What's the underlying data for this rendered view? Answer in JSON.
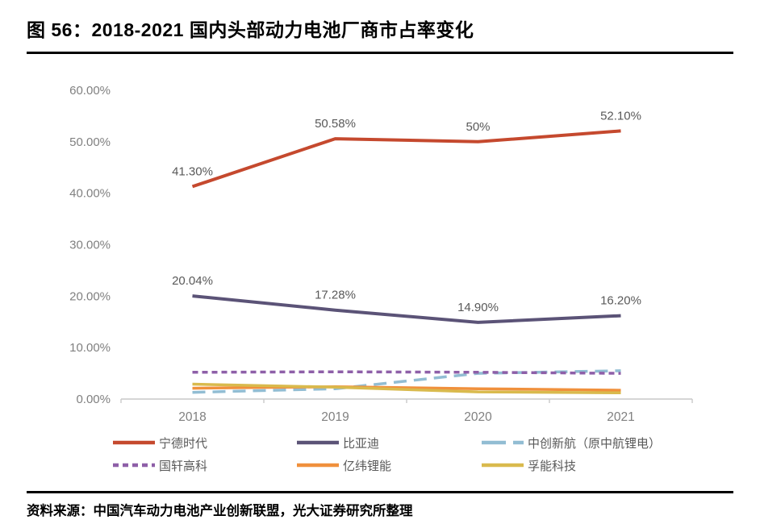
{
  "figure": {
    "title": "图 56：2018-2021 国内头部动力电池厂商市占率变化",
    "source": "资料来源：中国汽车动力电池产业创新联盟，光大证券研究所整理"
  },
  "chart_data": {
    "type": "line",
    "categories": [
      "2018",
      "2019",
      "2020",
      "2021"
    ],
    "series": [
      {
        "name": "宁德时代",
        "color": "#C5492E",
        "style": "solid",
        "values": [
          41.3,
          50.58,
          50.0,
          52.1
        ],
        "labels": [
          "41.30%",
          "50.58%",
          "50%",
          "52.10%"
        ]
      },
      {
        "name": "比亚迪",
        "color": "#5B5377",
        "style": "solid",
        "values": [
          20.04,
          17.28,
          14.9,
          16.2
        ],
        "labels": [
          "20.04%",
          "17.28%",
          "14.90%",
          "16.20%"
        ]
      },
      {
        "name": "中创新航（原中航锂电）",
        "color": "#92BDD3",
        "style": "dashed-long",
        "values": [
          1.3,
          2.0,
          5.0,
          5.5
        ]
      },
      {
        "name": "国轩高科",
        "color": "#8E5FA8",
        "style": "dashed-short",
        "values": [
          5.2,
          5.3,
          5.2,
          5.0
        ]
      },
      {
        "name": "亿纬锂能",
        "color": "#F0903C",
        "style": "solid",
        "values": [
          2.1,
          2.4,
          2.0,
          1.7
        ]
      },
      {
        "name": "孚能科技",
        "color": "#D9BA4D",
        "style": "solid",
        "values": [
          2.9,
          2.3,
          1.4,
          1.2
        ]
      }
    ],
    "y_ticks": [
      "0.00%",
      "10.00%",
      "20.00%",
      "30.00%",
      "40.00%",
      "50.00%",
      "60.00%"
    ],
    "y_tick_values": [
      0,
      10,
      20,
      30,
      40,
      50,
      60
    ],
    "ylim": [
      0,
      60
    ],
    "xlabel": "",
    "ylabel": "",
    "grid": false,
    "legend_position": "bottom",
    "axis_color": "#C9C9C9",
    "tick_text_color": "#808080",
    "data_label_color": "#595959"
  }
}
